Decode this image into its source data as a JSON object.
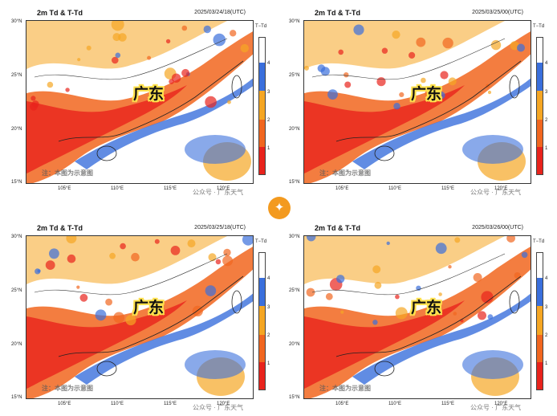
{
  "panels": [
    {
      "title": "2m Td & T-Td",
      "date": "2025/03/24/18(UTC)",
      "region_label": "广东",
      "note": "注：本图为示意图",
      "watermark": "公众号 · 广东天气"
    },
    {
      "title": "2m Td & T-Td",
      "date": "2025/03/25/00(UTC)",
      "region_label": "广东",
      "note": "注：本图为示意图",
      "watermark": "公众号 · 广东天气"
    },
    {
      "title": "2m Td & T-Td",
      "date": "2025/03/25/18(UTC)",
      "region_label": "广东",
      "note": "注：本图为示意图",
      "watermark": "公众号 · 广东天气"
    },
    {
      "title": "2m Td & T-Td",
      "date": "2025/03/26/00(UTC)",
      "region_label": "广东",
      "note": "注：本图为示意图",
      "watermark": "公众号 · 广东天气"
    }
  ],
  "axes": {
    "lat_labels": [
      "30°N",
      "25°N",
      "20°N",
      "15°N"
    ],
    "lon_labels": [
      "105°E",
      "110°E",
      "115°E",
      "120°E"
    ]
  },
  "colorbar": {
    "title": "T−Td",
    "ticks": [
      "4",
      "3",
      "2",
      "1"
    ],
    "colors": [
      "#ffffff",
      "#3a6fdc",
      "#f5a623",
      "#f1661f",
      "#e8231c"
    ]
  },
  "center_badge": {
    "icon": "sparkle-icon",
    "glyph": "✦",
    "color": "#f39a1f"
  }
}
